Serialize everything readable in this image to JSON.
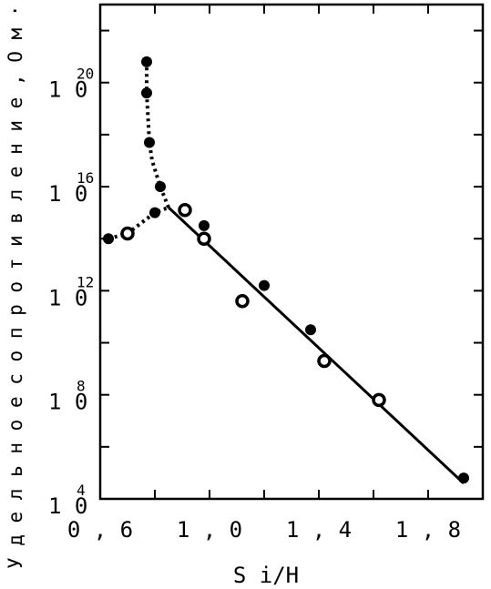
{
  "chart_data": {
    "type": "scatter",
    "title": "",
    "xlabel": "S i/H",
    "ylabel": "У д е л ь н о е  с о п р о т и в л е н и е ,  О м · с м",
    "xlim": [
      0.6,
      2.0
    ],
    "ylim": [
      4,
      23
    ],
    "y_scale": "log10",
    "x_ticks": [
      {
        "value": 0.6,
        "label": "0 , 6"
      },
      {
        "value": 1.0,
        "label": "1 , 0"
      },
      {
        "value": 1.4,
        "label": "1 , 4"
      },
      {
        "value": 1.8,
        "label": "1 , 8"
      }
    ],
    "y_ticks": [
      {
        "value": 4,
        "base": "1 0",
        "exp": "4"
      },
      {
        "value": 8,
        "base": "1 0",
        "exp": "8"
      },
      {
        "value": 12,
        "base": "1 0",
        "exp": "12"
      },
      {
        "value": 16,
        "base": "1 0",
        "exp": "16"
      },
      {
        "value": 20,
        "base": "1 0",
        "exp": "20"
      }
    ],
    "x_minor_ticks": [
      0.8,
      1.2,
      1.6,
      2.0
    ],
    "y_minor_ticks": [
      6,
      10,
      14,
      18,
      22
    ],
    "grid": false,
    "series": [
      {
        "marker": "filled-circle",
        "points": [
          {
            "x": 0.63,
            "y": 14.0
          },
          {
            "x": 0.8,
            "y": 15.0
          },
          {
            "x": 0.82,
            "y": 16.0
          },
          {
            "x": 0.78,
            "y": 17.7
          },
          {
            "x": 0.77,
            "y": 19.6
          },
          {
            "x": 0.77,
            "y": 20.8
          },
          {
            "x": 0.98,
            "y": 14.5
          },
          {
            "x": 1.2,
            "y": 12.2
          },
          {
            "x": 1.37,
            "y": 10.5
          },
          {
            "x": 1.93,
            "y": 4.8
          }
        ]
      },
      {
        "marker": "open-circle",
        "points": [
          {
            "x": 0.7,
            "y": 14.2
          },
          {
            "x": 0.91,
            "y": 15.1
          },
          {
            "x": 0.98,
            "y": 14.0
          },
          {
            "x": 1.12,
            "y": 11.6
          },
          {
            "x": 1.42,
            "y": 9.3
          },
          {
            "x": 1.62,
            "y": 7.8
          }
        ]
      }
    ],
    "curves": [
      {
        "style": "solid",
        "points": [
          {
            "x": 0.85,
            "y": 15.2
          },
          {
            "x": 1.93,
            "y": 4.6
          }
        ]
      },
      {
        "style": "dotted",
        "points": [
          {
            "x": 0.63,
            "y": 14.0
          },
          {
            "x": 0.7,
            "y": 14.2
          },
          {
            "x": 0.8,
            "y": 15.0
          },
          {
            "x": 0.85,
            "y": 15.2
          }
        ]
      },
      {
        "style": "dotted",
        "points": [
          {
            "x": 0.85,
            "y": 15.2
          },
          {
            "x": 0.82,
            "y": 16.0
          },
          {
            "x": 0.79,
            "y": 17.0
          },
          {
            "x": 0.78,
            "y": 17.7
          },
          {
            "x": 0.77,
            "y": 19.6
          },
          {
            "x": 0.77,
            "y": 20.8
          }
        ]
      }
    ]
  }
}
